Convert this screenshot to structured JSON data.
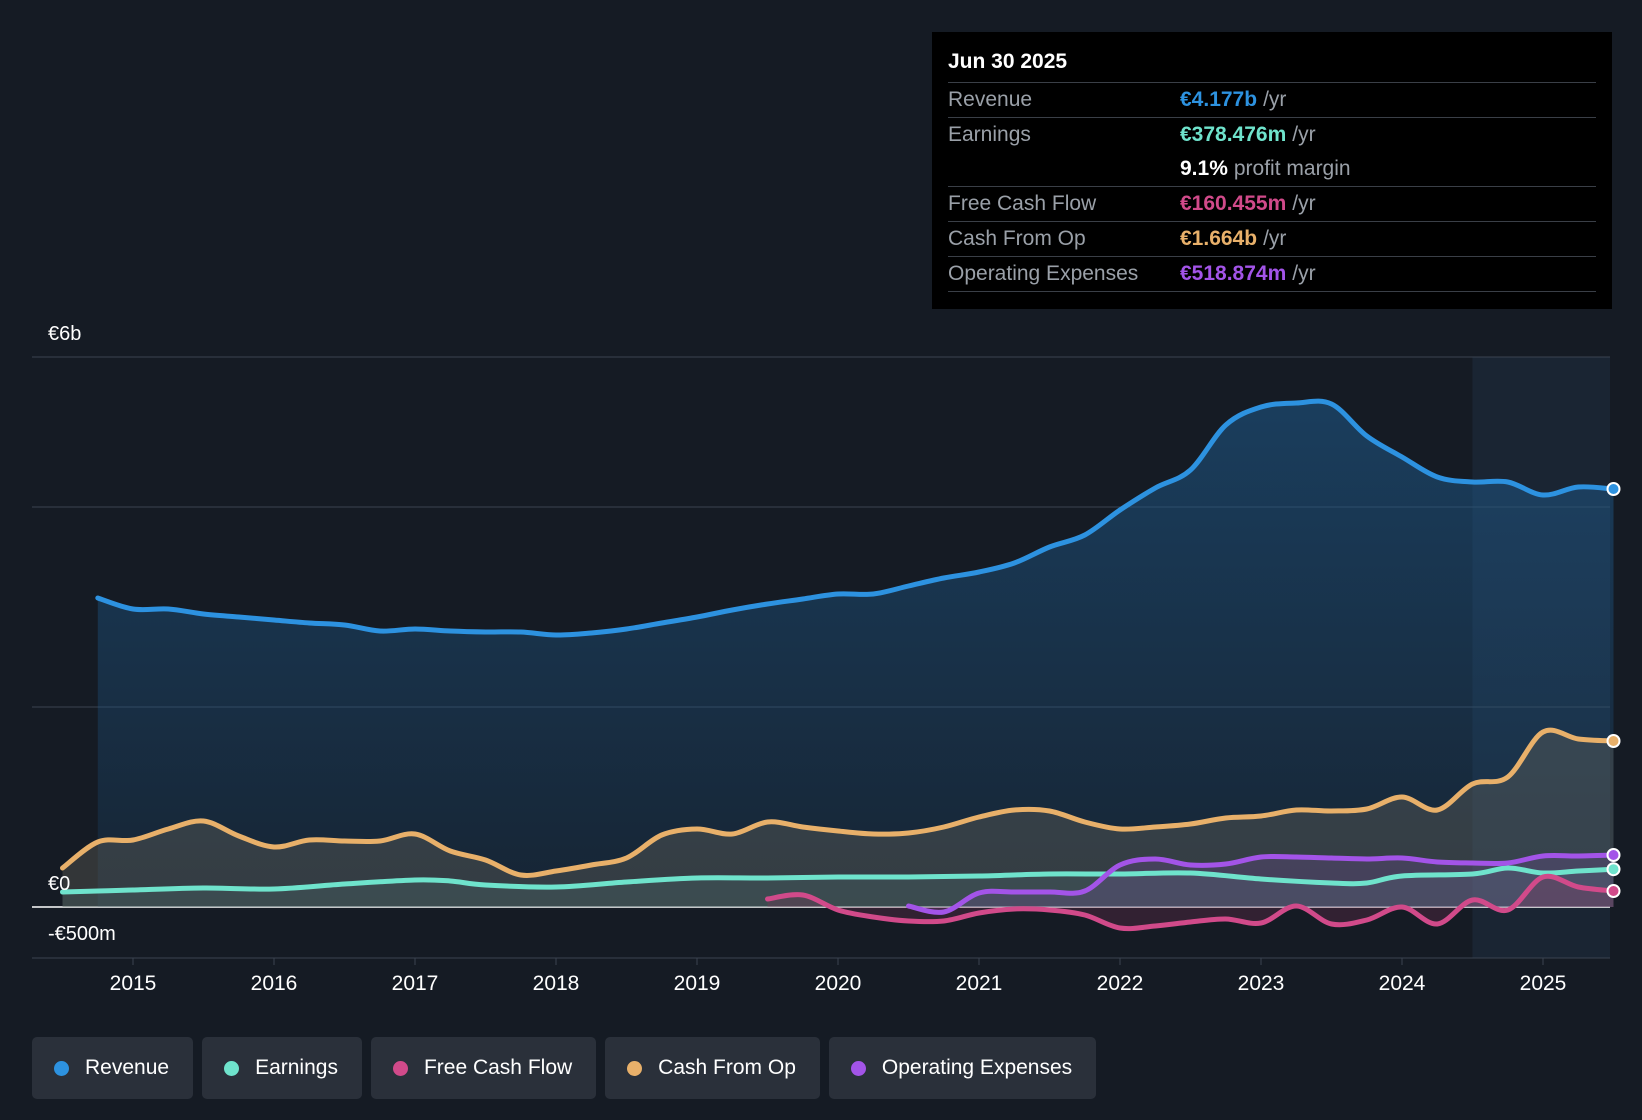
{
  "tooltip": {
    "date": "Jun 30 2025",
    "rows": [
      {
        "label": "Revenue",
        "value": "€4.177b",
        "unit": "/yr",
        "color": "#2d92e0"
      },
      {
        "label": "Earnings",
        "value": "€378.476m",
        "unit": "/yr",
        "color": "#6fe3cc"
      },
      {
        "label": "",
        "value": "9.1%",
        "unit": "profit margin",
        "color": "#ffffff"
      },
      {
        "label": "Free Cash Flow",
        "value": "€160.455m",
        "unit": "/yr",
        "color": "#d14a8a"
      },
      {
        "label": "Cash From Op",
        "value": "€1.664b",
        "unit": "/yr",
        "color": "#e8b06a"
      },
      {
        "label": "Operating Expenses",
        "value": "€518.874m",
        "unit": "/yr",
        "color": "#a354e8"
      }
    ]
  },
  "legend": [
    {
      "label": "Revenue",
      "color": "#2d92e0"
    },
    {
      "label": "Earnings",
      "color": "#6fe3cc"
    },
    {
      "label": "Free Cash Flow",
      "color": "#d14a8a"
    },
    {
      "label": "Cash From Op",
      "color": "#e8b06a"
    },
    {
      "label": "Operating Expenses",
      "color": "#a354e8"
    }
  ],
  "chart_data": {
    "type": "area",
    "title": "",
    "xlabel": "",
    "ylabel": "",
    "y_top_label": "€6b",
    "y_zero_label": "€0",
    "y_bottom_label": "-€500m",
    "ylim": [
      -0.5,
      5.5
    ],
    "xlim": [
      2014.5,
      2025.5
    ],
    "xticks": [
      "2015",
      "2016",
      "2017",
      "2018",
      "2019",
      "2020",
      "2021",
      "2022",
      "2023",
      "2024",
      "2025"
    ],
    "forecast_start": 2024.5,
    "series": [
      {
        "name": "Revenue",
        "color": "#2d92e0",
        "x": [
          2014.75,
          2015.0,
          2015.25,
          2015.5,
          2015.75,
          2016.0,
          2016.25,
          2016.5,
          2016.75,
          2017.0,
          2017.25,
          2017.5,
          2017.75,
          2018.0,
          2018.25,
          2018.5,
          2018.75,
          2019.0,
          2019.25,
          2019.5,
          2019.75,
          2020.0,
          2020.25,
          2020.5,
          2020.75,
          2021.0,
          2021.25,
          2021.5,
          2021.75,
          2022.0,
          2022.25,
          2022.5,
          2022.75,
          2023.0,
          2023.25,
          2023.5,
          2023.75,
          2024.0,
          2024.25,
          2024.5,
          2024.75,
          2025.0,
          2025.25,
          2025.5
        ],
        "values": [
          3.09,
          2.98,
          2.98,
          2.93,
          2.9,
          2.87,
          2.84,
          2.82,
          2.76,
          2.78,
          2.76,
          2.75,
          2.75,
          2.72,
          2.74,
          2.78,
          2.84,
          2.9,
          2.97,
          3.03,
          3.08,
          3.13,
          3.13,
          3.21,
          3.29,
          3.35,
          3.44,
          3.6,
          3.72,
          3.97,
          4.19,
          4.37,
          4.82,
          5.0,
          5.04,
          5.03,
          4.71,
          4.5,
          4.3,
          4.25,
          4.25,
          4.12,
          4.2,
          4.18
        ]
      },
      {
        "name": "Cash From Op",
        "color": "#e8b06a",
        "x": [
          2014.5,
          2014.75,
          2015.0,
          2015.25,
          2015.5,
          2015.75,
          2016.0,
          2016.25,
          2016.5,
          2016.75,
          2017.0,
          2017.25,
          2017.5,
          2017.75,
          2018.0,
          2018.25,
          2018.5,
          2018.75,
          2019.0,
          2019.25,
          2019.5,
          2019.75,
          2020.0,
          2020.25,
          2020.5,
          2020.75,
          2021.0,
          2021.25,
          2021.5,
          2021.75,
          2022.0,
          2022.25,
          2022.5,
          2022.75,
          2023.0,
          2023.25,
          2023.5,
          2023.75,
          2024.0,
          2024.25,
          2024.5,
          2024.75,
          2025.0,
          2025.25,
          2025.5
        ],
        "values": [
          0.39,
          0.65,
          0.67,
          0.78,
          0.86,
          0.71,
          0.6,
          0.67,
          0.66,
          0.66,
          0.73,
          0.56,
          0.47,
          0.32,
          0.36,
          0.42,
          0.49,
          0.72,
          0.78,
          0.73,
          0.85,
          0.8,
          0.76,
          0.73,
          0.74,
          0.8,
          0.9,
          0.97,
          0.96,
          0.85,
          0.78,
          0.8,
          0.83,
          0.89,
          0.91,
          0.97,
          0.96,
          0.98,
          1.1,
          0.97,
          1.23,
          1.3,
          1.75,
          1.68,
          1.66
        ]
      },
      {
        "name": "Earnings",
        "color": "#6fe3cc",
        "x": [
          2014.5,
          2014.75,
          2015.0,
          2015.5,
          2016.0,
          2016.5,
          2017.0,
          2017.25,
          2017.5,
          2018.0,
          2018.5,
          2019.0,
          2019.5,
          2020.0,
          2020.5,
          2021.0,
          2021.5,
          2022.0,
          2022.5,
          2023.0,
          2023.5,
          2023.75,
          2024.0,
          2024.5,
          2024.75,
          2025.0,
          2025.25,
          2025.5
        ],
        "values": [
          0.15,
          0.16,
          0.17,
          0.19,
          0.18,
          0.23,
          0.27,
          0.26,
          0.22,
          0.2,
          0.25,
          0.29,
          0.29,
          0.3,
          0.3,
          0.31,
          0.33,
          0.33,
          0.34,
          0.28,
          0.24,
          0.24,
          0.31,
          0.33,
          0.39,
          0.34,
          0.36,
          0.378
        ]
      },
      {
        "name": "Operating Expenses",
        "color": "#a354e8",
        "x": [
          2020.5,
          2020.75,
          2021.0,
          2021.25,
          2021.5,
          2021.75,
          2022.0,
          2022.25,
          2022.5,
          2022.75,
          2023.0,
          2023.25,
          2023.5,
          2023.75,
          2024.0,
          2024.25,
          2024.5,
          2024.75,
          2025.0,
          2025.25,
          2025.5
        ],
        "values": [
          0.01,
          -0.05,
          0.14,
          0.15,
          0.15,
          0.16,
          0.42,
          0.48,
          0.42,
          0.43,
          0.5,
          0.5,
          0.49,
          0.48,
          0.49,
          0.45,
          0.44,
          0.44,
          0.51,
          0.51,
          0.52
        ]
      },
      {
        "name": "Free Cash Flow",
        "color": "#d14a8a",
        "x": [
          2019.5,
          2019.75,
          2020.0,
          2020.25,
          2020.5,
          2020.75,
          2021.0,
          2021.25,
          2021.5,
          2021.75,
          2022.0,
          2022.25,
          2022.5,
          2022.75,
          2023.0,
          2023.25,
          2023.5,
          2023.75,
          2024.0,
          2024.25,
          2024.5,
          2024.75,
          2025.0,
          2025.25,
          2025.5
        ],
        "values": [
          0.08,
          0.12,
          -0.03,
          -0.1,
          -0.14,
          -0.14,
          -0.06,
          -0.02,
          -0.03,
          -0.08,
          -0.21,
          -0.19,
          -0.15,
          -0.12,
          -0.16,
          0.01,
          -0.17,
          -0.13,
          0.0,
          -0.17,
          0.07,
          -0.03,
          0.3,
          0.2,
          0.16
        ]
      }
    ]
  }
}
